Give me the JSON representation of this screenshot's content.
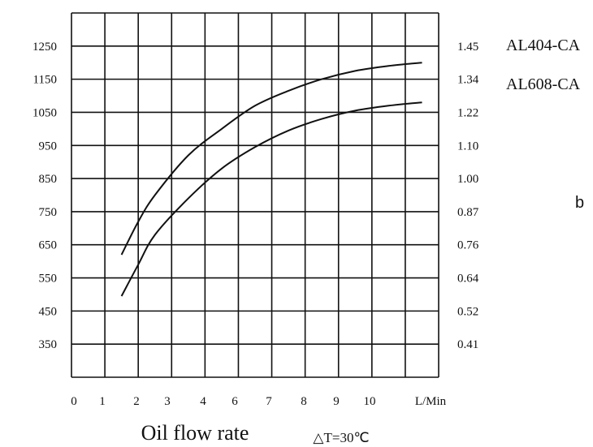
{
  "chart_data": {
    "type": "line",
    "x_ticks": [
      "0",
      "1",
      "2",
      "3",
      "4",
      "6",
      "7",
      "8",
      "9",
      "10"
    ],
    "x_unit": "L/Min",
    "x_title": "Oil flow rate",
    "note": "△T=30℃",
    "y_left_ticks": [
      "1250",
      "1150",
      "1050",
      "950",
      "850",
      "750",
      "650",
      "550",
      "450",
      "350"
    ],
    "y_right_ticks": [
      "1.45",
      "1.34",
      "1.22",
      "1.10",
      "1.00",
      "0.87",
      "0.76",
      "0.64",
      "0.52",
      "0.41"
    ],
    "ylim": [
      250,
      1350
    ],
    "grid": true,
    "series": [
      {
        "name": "AL404-CA",
        "x": [
          1,
          1.5,
          2,
          3,
          4,
          5,
          6,
          7,
          8,
          9,
          10
        ],
        "y": [
          620,
          720,
          800,
          920,
          1000,
          1070,
          1115,
          1150,
          1175,
          1190,
          1200
        ]
      },
      {
        "name": "AL608-CA",
        "x": [
          1,
          1.5,
          2,
          3,
          4,
          5,
          6,
          7,
          8,
          9,
          10
        ],
        "y": [
          495,
          590,
          680,
          790,
          880,
          945,
          995,
          1030,
          1055,
          1070,
          1080
        ]
      }
    ],
    "side_label": "b"
  }
}
